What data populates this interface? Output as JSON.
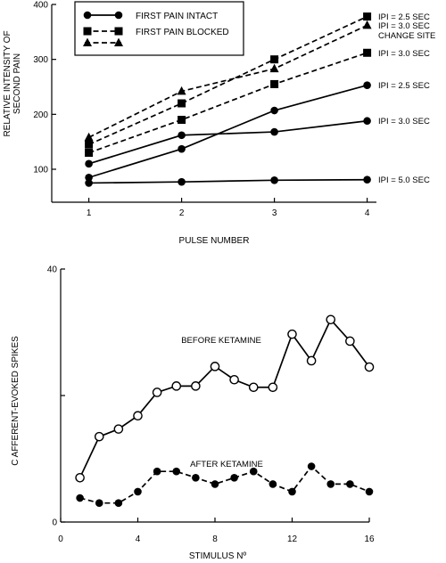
{
  "chart_data": [
    {
      "type": "line",
      "xlabel": "PULSE NUMBER",
      "ylabel": "RELATIVE INTENSITY OF SECOND PAIN",
      "ylabel_lines": [
        "RELATIVE INTENSITY OF",
        "SECOND PAIN"
      ],
      "xlim": [
        0.6,
        4.1
      ],
      "ylim": [
        40,
        400
      ],
      "x_ticks": [
        1,
        2,
        3,
        4
      ],
      "y_ticks": [
        100,
        200,
        300,
        400
      ],
      "grid": false,
      "legend_position": "top-left",
      "legend": [
        {
          "label": "FIRST PAIN INTACT",
          "line": "solid",
          "marker": "circle"
        },
        {
          "label": "FIRST PAIN BLOCKED",
          "line": "dashed",
          "marker": "square"
        },
        {
          "label": "",
          "line": "dashed",
          "marker": "triangle"
        }
      ],
      "x": [
        1,
        2,
        3,
        4
      ],
      "series": [
        {
          "annotation": "IPI = 2.5 SEC",
          "line": "dashed",
          "marker": "square",
          "values": [
            145,
            220,
            300,
            378
          ]
        },
        {
          "annotation": "IPI = 3.0 SEC CHANGE SITE",
          "annotation_lines": [
            "IPI = 3.0 SEC",
            "CHANGE SITE"
          ],
          "line": "dashed",
          "marker": "triangle",
          "values": [
            158,
            242,
            283,
            362
          ]
        },
        {
          "annotation": "IPI = 3.0 SEC",
          "line": "dashed",
          "marker": "square",
          "values": [
            130,
            190,
            255,
            312
          ]
        },
        {
          "annotation": "IPI = 2.5 SEC",
          "line": "solid",
          "marker": "circle",
          "values": [
            85,
            137,
            207,
            253
          ]
        },
        {
          "annotation": "IPI = 3.0 SEC",
          "line": "solid",
          "marker": "circle",
          "values": [
            110,
            162,
            168,
            188
          ]
        },
        {
          "annotation": "IPI = 5.0 SEC",
          "line": "solid",
          "marker": "circle",
          "values": [
            75,
            77,
            80,
            81
          ]
        }
      ]
    },
    {
      "type": "line",
      "xlabel": "STIMULUS Nº",
      "ylabel": "C AFFERENT-EVOKED SPIKES",
      "xlim": [
        0,
        16
      ],
      "ylim": [
        0,
        40
      ],
      "x_ticks": [
        0,
        4,
        8,
        12,
        16
      ],
      "y_ticks": [
        0,
        20,
        40
      ],
      "y_tick_labels": [
        "0",
        "",
        "40"
      ],
      "grid": false,
      "x": [
        1,
        2,
        3,
        4,
        5,
        6,
        7,
        8,
        9,
        10,
        11,
        12,
        13,
        14,
        15,
        16
      ],
      "series": [
        {
          "annotation": "BEFORE KETAMINE",
          "line": "solid",
          "marker": "open-circle",
          "values": [
            7,
            13.5,
            14.7,
            16.8,
            20.5,
            21.5,
            21.5,
            24.6,
            22.5,
            21.3,
            21.3,
            29.7,
            25.5,
            32,
            28.6,
            24.5
          ]
        },
        {
          "annotation": "AFTER KETAMINE",
          "line": "dashed",
          "marker": "filled-circle",
          "values": [
            3.8,
            3,
            3,
            4.8,
            8,
            8,
            7,
            6,
            7,
            8,
            6,
            4.8,
            8.8,
            6,
            6,
            4.8
          ]
        }
      ]
    }
  ]
}
